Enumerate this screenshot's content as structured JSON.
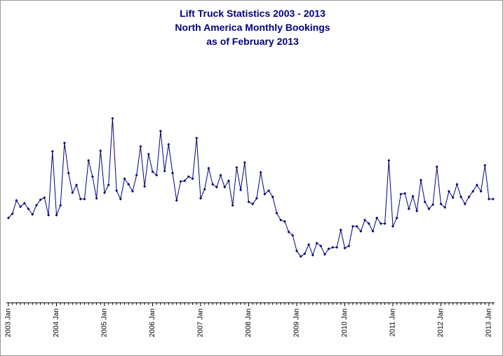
{
  "chart_data": {
    "type": "line",
    "title": [
      "Lift Truck Statistics 2003 - 2013",
      "North America Monthly Bookings",
      "as of February 2013"
    ],
    "categories": [
      "2003 Jan",
      null,
      null,
      null,
      null,
      null,
      null,
      null,
      null,
      null,
      null,
      null,
      "2004 Jan",
      null,
      null,
      null,
      null,
      null,
      null,
      null,
      null,
      null,
      null,
      null,
      "2005 Jan",
      null,
      null,
      null,
      null,
      null,
      null,
      null,
      null,
      null,
      null,
      null,
      "2006 Jan",
      null,
      null,
      null,
      null,
      null,
      null,
      null,
      null,
      null,
      null,
      null,
      "2007 Jan",
      null,
      null,
      null,
      null,
      null,
      null,
      null,
      null,
      null,
      null,
      null,
      "2008 Jan",
      null,
      null,
      null,
      null,
      null,
      null,
      null,
      null,
      null,
      null,
      null,
      "2009 Jan",
      null,
      null,
      null,
      null,
      null,
      null,
      null,
      null,
      null,
      null,
      null,
      "2010 Jan",
      null,
      null,
      null,
      null,
      null,
      null,
      null,
      null,
      null,
      null,
      null,
      "2011 Jan",
      null,
      null,
      null,
      null,
      null,
      null,
      null,
      null,
      null,
      null,
      null,
      "2012 Jan",
      null,
      null,
      null,
      null,
      null,
      null,
      null,
      null,
      null,
      null,
      null,
      "2013 Jan",
      null
    ],
    "values": [
      121,
      127,
      146,
      137,
      142,
      134,
      126,
      139,
      147,
      150,
      125,
      216,
      125,
      139,
      228,
      185,
      157,
      168,
      148,
      148,
      203,
      180,
      149,
      217,
      157,
      168,
      263,
      160,
      148,
      177,
      169,
      159,
      182,
      223,
      166,
      212,
      187,
      182,
      245,
      188,
      226,
      185,
      146,
      173,
      174,
      180,
      177,
      235,
      149,
      162,
      192,
      169,
      165,
      182,
      165,
      174,
      139,
      193,
      161,
      200,
      144,
      141,
      149,
      186,
      155,
      160,
      151,
      128,
      118,
      116,
      101,
      96,
      74,
      66,
      70,
      83,
      68,
      85,
      81,
      69,
      77,
      79,
      79,
      104,
      78,
      81,
      109,
      109,
      102,
      118,
      113,
      102,
      121,
      113,
      113,
      203,
      109,
      121,
      155,
      156,
      134,
      152,
      131,
      175,
      144,
      134,
      140,
      194,
      141,
      136,
      159,
      150,
      169,
      151,
      141,
      151,
      159,
      168,
      159,
      196,
      148,
      148
    ],
    "color": "#000080",
    "ylim": [
      0,
      432
    ]
  }
}
